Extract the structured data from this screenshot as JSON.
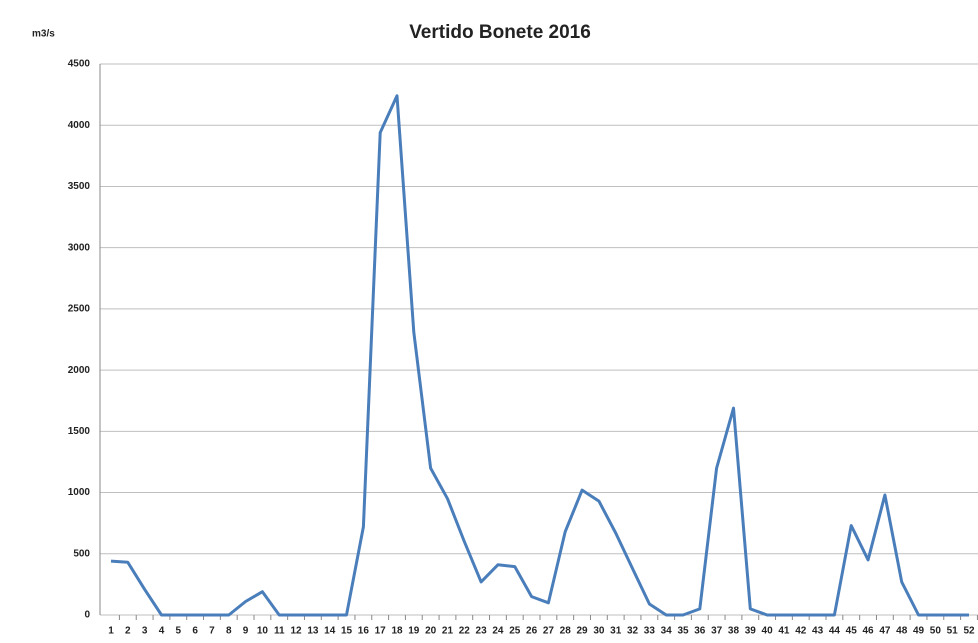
{
  "chart_data": {
    "type": "line",
    "title": "Vertido Bonete 2016",
    "y_label": "m3/s",
    "categories": [
      "1",
      "2",
      "3",
      "4",
      "5",
      "6",
      "7",
      "8",
      "9",
      "10",
      "11",
      "12",
      "13",
      "14",
      "15",
      "16",
      "17",
      "18",
      "19",
      "20",
      "21",
      "22",
      "23",
      "24",
      "25",
      "26",
      "27",
      "28",
      "29",
      "30",
      "31",
      "32",
      "33",
      "34",
      "35",
      "36",
      "37",
      "38",
      "39",
      "40",
      "41",
      "42",
      "43",
      "44",
      "45",
      "46",
      "47",
      "48",
      "49",
      "50",
      "51",
      "52"
    ],
    "series": [
      {
        "name": "Vertido",
        "color": "#4a7ebb",
        "values": [
          440,
          430,
          210,
          0,
          0,
          0,
          0,
          0,
          110,
          190,
          0,
          0,
          0,
          0,
          0,
          720,
          3940,
          4240,
          2310,
          1200,
          950,
          600,
          270,
          410,
          395,
          150,
          100,
          680,
          1020,
          930,
          670,
          380,
          90,
          0,
          0,
          50,
          1200,
          1690,
          50,
          0,
          0,
          0,
          0,
          0,
          730,
          450,
          980,
          270,
          0,
          0,
          0,
          0
        ]
      }
    ],
    "ylim": [
      0,
      4500
    ],
    "yticks": [
      0,
      500,
      1000,
      1500,
      2000,
      2500,
      3000,
      3500,
      4000,
      4500
    ],
    "grid": true
  }
}
